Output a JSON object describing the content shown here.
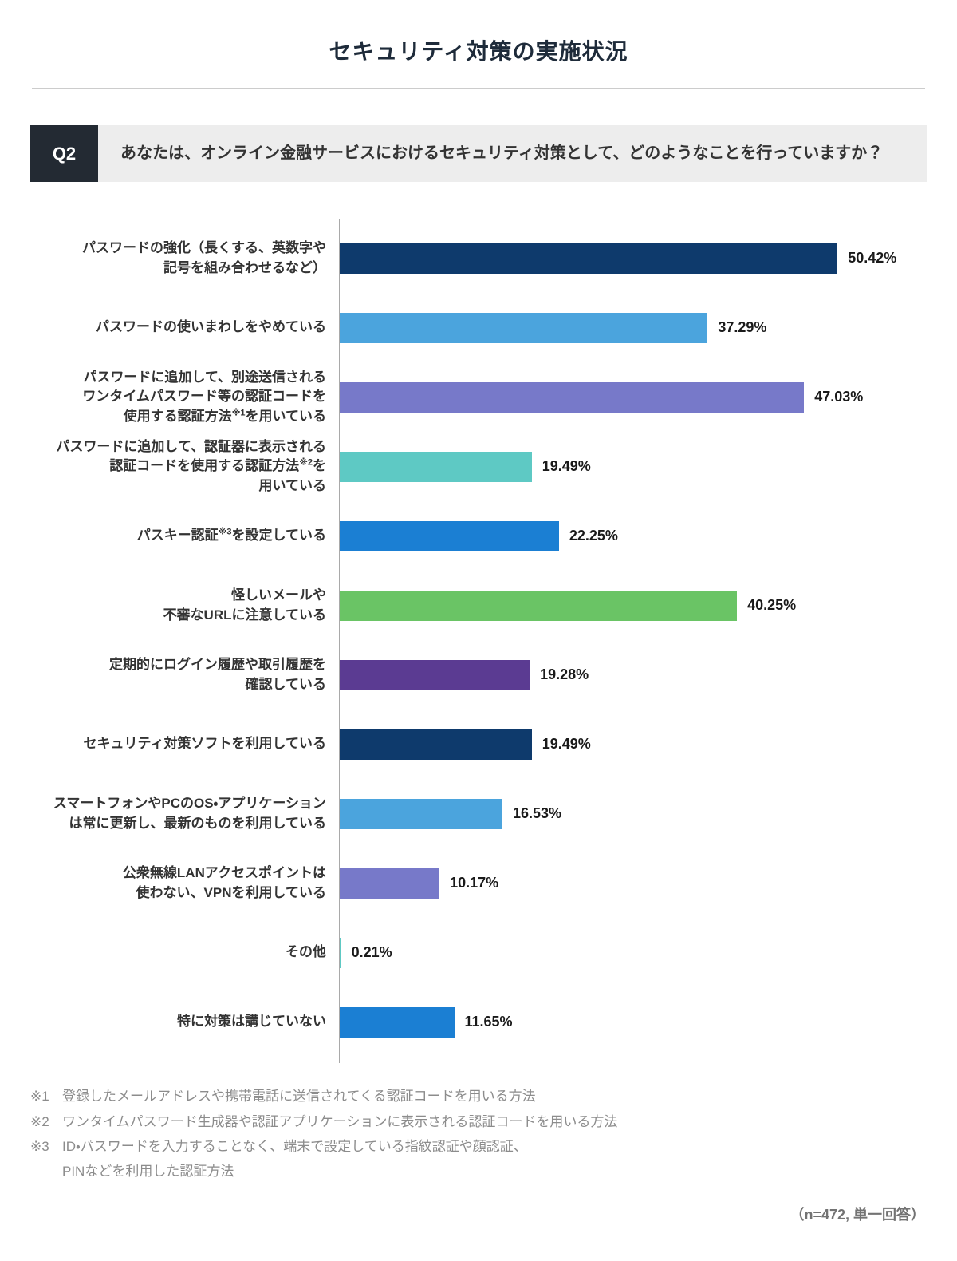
{
  "title": "セキュリティ対策の実施状況",
  "question": {
    "tag": "Q2",
    "text": "あなたは、オンライン金融サービスにおけるセキュリティ対策として、どのようなことを行っていますか？"
  },
  "chart_data": {
    "type": "bar",
    "orientation": "horizontal",
    "unit": "%",
    "xlim": [
      0,
      55
    ],
    "grid": false,
    "legend": false,
    "categories": [
      {
        "lines": [
          "パスワードの強化（長くする、英数字や",
          "記号を組み合わせるなど）"
        ]
      },
      {
        "lines": [
          "パスワードの使いまわしをやめている"
        ]
      },
      {
        "lines": [
          "パスワードに追加して、別途送信される",
          "ワンタイムパスワード等の認証コードを",
          "使用する認証方法※1を用いている"
        ]
      },
      {
        "lines": [
          "パスワードに追加して、認証器に表示される",
          "認証コードを使用する認証方法※2を",
          "用いている"
        ]
      },
      {
        "lines": [
          "パスキー認証※3を設定している"
        ]
      },
      {
        "lines": [
          "怪しいメールや",
          "不審なURLに注意している"
        ]
      },
      {
        "lines": [
          "定期的にログイン履歴や取引履歴を",
          "確認している"
        ]
      },
      {
        "lines": [
          "セキュリティ対策ソフトを利用している"
        ]
      },
      {
        "lines": [
          "スマートフォンやPCのOS・アプリケーション",
          "は常に更新し、最新のものを利用している"
        ]
      },
      {
        "lines": [
          "公衆無線LANアクセスポイントは",
          "使わない、VPNを利用している"
        ]
      },
      {
        "lines": [
          "その他"
        ]
      },
      {
        "lines": [
          "特に対策は講じていない"
        ]
      }
    ],
    "values": [
      50.42,
      37.29,
      47.03,
      19.49,
      22.25,
      40.25,
      19.28,
      19.49,
      16.53,
      10.17,
      0.21,
      11.65
    ],
    "value_labels": [
      "50.42%",
      "37.29%",
      "47.03%",
      "19.49%",
      "22.25%",
      "40.25%",
      "19.28%",
      "19.49%",
      "16.53%",
      "10.17%",
      "0.21%",
      "11.65%"
    ],
    "colors": [
      "#0e3a6c",
      "#4ba4dd",
      "#7779c9",
      "#5ec9c4",
      "#1b7fd3",
      "#6ac465",
      "#5b3b92",
      "#0e3a6c",
      "#4ba4dd",
      "#7779c9",
      "#5ec9c4",
      "#1b7fd3"
    ]
  },
  "footnotes": [
    {
      "marker": "※1",
      "lines": [
        "登録したメールアドレスや携帯電話に送信されてくる認証コードを用いる方法"
      ]
    },
    {
      "marker": "※2",
      "lines": [
        "ワンタイムパスワード生成器や認証アプリケーションに表示される認証コードを用いる方法"
      ]
    },
    {
      "marker": "※3",
      "lines": [
        "ID・パスワードを入力することなく、端末で設定している指紋認証や顔認証、",
        "PINなどを利用した認証方法"
      ]
    }
  ],
  "sample_note": "（n=472, 単一回答）"
}
